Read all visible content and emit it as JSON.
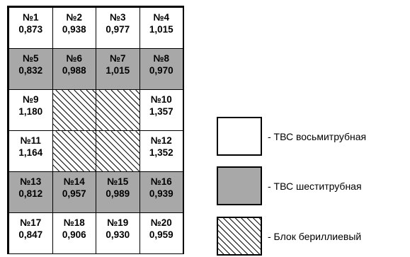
{
  "rows": [
    [
      {
        "type": "white",
        "num": "№1",
        "val": "0,873"
      },
      {
        "type": "white",
        "num": "№2",
        "val": "0,938"
      },
      {
        "type": "white",
        "num": "№3",
        "val": "0,977"
      },
      {
        "type": "white",
        "num": "№4",
        "val": "1,015"
      }
    ],
    [
      {
        "type": "gray",
        "num": "№5",
        "val": "0,832"
      },
      {
        "type": "gray",
        "num": "№6",
        "val": "0,988"
      },
      {
        "type": "gray",
        "num": "№7",
        "val": "1,015"
      },
      {
        "type": "gray",
        "num": "№8",
        "val": "0,970"
      }
    ],
    [
      {
        "type": "white",
        "num": "№9",
        "val": "1,180"
      },
      {
        "type": "hatch"
      },
      {
        "type": "hatch"
      },
      {
        "type": "white",
        "num": "№10",
        "val": "1,357"
      }
    ],
    [
      {
        "type": "white",
        "num": "№11",
        "val": "1,164"
      },
      {
        "type": "hatch"
      },
      {
        "type": "hatch"
      },
      {
        "type": "white",
        "num": "№12",
        "val": "1,352"
      }
    ],
    [
      {
        "type": "gray",
        "num": "№13",
        "val": "0,812"
      },
      {
        "type": "gray",
        "num": "№14",
        "val": "0,957"
      },
      {
        "type": "gray",
        "num": "№15",
        "val": "0,989"
      },
      {
        "type": "gray",
        "num": "№16",
        "val": "0,939"
      }
    ],
    [
      {
        "type": "white",
        "num": "№17",
        "val": "0,847"
      },
      {
        "type": "white",
        "num": "№18",
        "val": "0,906"
      },
      {
        "type": "white",
        "num": "№19",
        "val": "0,930"
      },
      {
        "type": "white",
        "num": "№20",
        "val": "0,959"
      }
    ]
  ],
  "legend": [
    {
      "type": "white",
      "label": "- ТВС восьмитрубная"
    },
    {
      "type": "gray",
      "label": "- ТВС шеститрубная"
    },
    {
      "type": "hatch",
      "label": "- Блок бериллиевый"
    }
  ],
  "colors": {
    "gray": "#a8a8a8",
    "white": "#ffffff",
    "line": "#000000"
  }
}
